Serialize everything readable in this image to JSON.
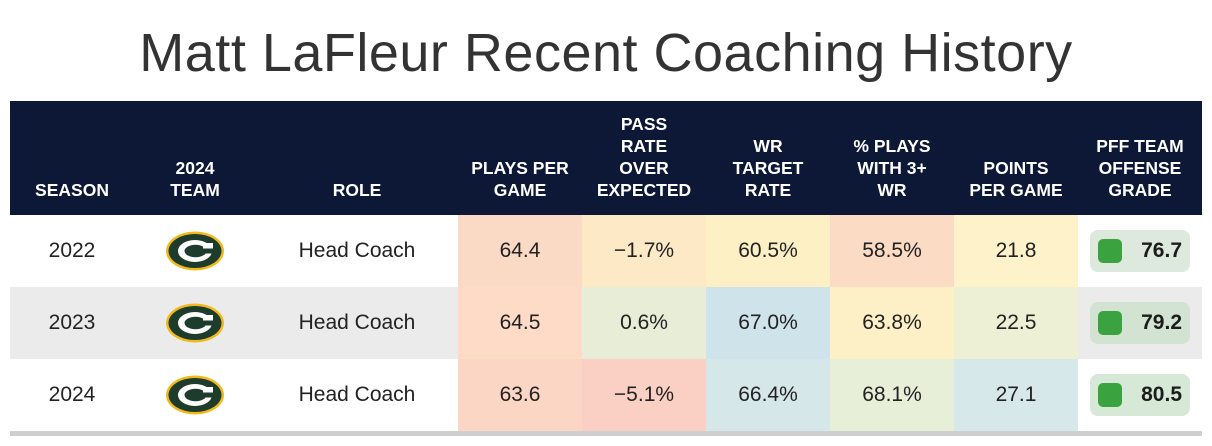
{
  "title": "Matt LaFleur Recent Coaching History",
  "headers": {
    "season": "SEASON",
    "team": "2024\nTEAM",
    "role": "ROLE",
    "plays": "PLAYS PER\nGAME",
    "proe": "PASS\nRATE\nOVER\nEXPECTED",
    "wr_target": "WR\nTARGET\nRATE",
    "three_wr": "% PLAYS\nWITH 3+\nWR",
    "points": "POINTS\nPER GAME",
    "grade": "PFF TEAM\nOFFENSE\nGRADE"
  },
  "colors": {
    "header_bg": "#0d1736",
    "grade_dot": "#3aa33f",
    "logo_green": "#1d3c2c",
    "logo_gold": "#f1b91c"
  },
  "rows": [
    {
      "season": "2022",
      "team_icon": "packers-logo-icon",
      "role": "Head Coach",
      "plays": "64.4",
      "proe": "−1.7%",
      "wr_target": "60.5%",
      "three_wr": "58.5%",
      "points": "21.8",
      "grade": "76.7",
      "colors": {
        "plays": "#fbdac5",
        "proe": "#fde9c6",
        "wr_target": "#fdf0c5",
        "three_wr": "#fbdbc4",
        "points": "#fdf2c9",
        "grade": "#dce9dc"
      }
    },
    {
      "season": "2023",
      "team_icon": "packers-logo-icon",
      "role": "Head Coach",
      "plays": "64.5",
      "proe": "0.6%",
      "wr_target": "67.0%",
      "three_wr": "63.8%",
      "points": "22.5",
      "grade": "79.2",
      "colors": {
        "plays": "#fddbc6",
        "proe": "#e7edd6",
        "wr_target": "#cfe3ea",
        "three_wr": "#fdefc6",
        "points": "#eef0d6",
        "grade": "#d2e3d2"
      }
    },
    {
      "season": "2024",
      "team_icon": "packers-logo-icon",
      "role": "Head Coach",
      "plays": "63.6",
      "proe": "−5.1%",
      "wr_target": "66.4%",
      "three_wr": "68.1%",
      "points": "27.1",
      "grade": "80.5",
      "colors": {
        "plays": "#fbd6c4",
        "proe": "#fbd0c4",
        "wr_target": "#d6e7ea",
        "three_wr": "#e7efd8",
        "points": "#d7e8ea",
        "grade": "#d6e8d6"
      }
    }
  ]
}
